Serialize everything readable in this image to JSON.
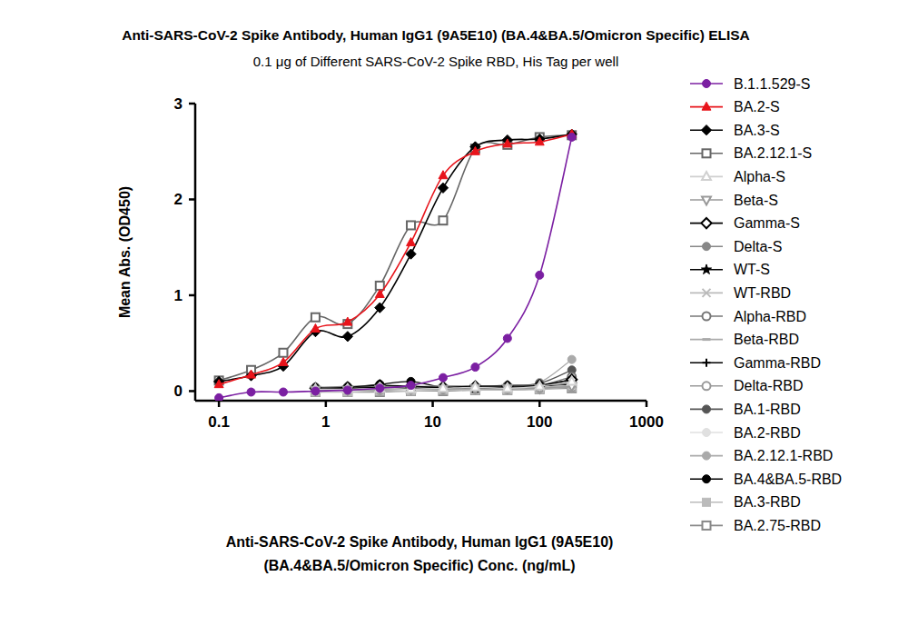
{
  "chart_data": {
    "type": "line",
    "title": "Anti-SARS-CoV-2 Spike Antibody, Human IgG1 (9A5E10) (BA.4&BA.5/Omicron Specific) ELISA",
    "subtitle": "0.1 μg of Different SARS-CoV-2 Spike RBD, His Tag  per well",
    "xlabel": "Anti-SARS-CoV-2 Spike Antibody, Human IgG1 (9A5E10)\n(BA.4&BA.5/Omicron Specific) Conc. (ng/mL)",
    "ylabel": "Mean Abs. (OD450)",
    "log": "x",
    "grid": false,
    "legend": "right",
    "xlim": [
      0.06,
      1000
    ],
    "xticks": [
      0.1,
      1,
      10,
      100,
      1000
    ],
    "ylim": [
      -0.1,
      3
    ],
    "yticks": [
      0,
      1,
      2,
      3
    ],
    "x": [
      0.1,
      0.2,
      0.4,
      0.8,
      1.6,
      3.2,
      6.25,
      12.5,
      25,
      50,
      100,
      200
    ],
    "series": [
      {
        "name": "B.1.1.529-S",
        "color": "#7b1fa2",
        "marker": "circle",
        "values": [
          -0.07,
          -0.01,
          -0.01,
          0.0,
          0.01,
          0.03,
          0.06,
          0.14,
          0.25,
          0.55,
          1.21,
          2.65
        ]
      },
      {
        "name": "BA.2-S",
        "color": "#e8141b",
        "marker": "triangle",
        "values": [
          0.07,
          0.17,
          0.3,
          0.65,
          0.72,
          1.01,
          1.55,
          2.25,
          2.5,
          2.58,
          2.6,
          2.68
        ]
      },
      {
        "name": "BA.3-S",
        "color": "#000000",
        "marker": "diamond",
        "values": [
          0.1,
          0.16,
          0.26,
          0.62,
          0.57,
          0.87,
          1.43,
          2.12,
          2.55,
          2.62,
          2.63,
          2.68
        ]
      },
      {
        "name": "BA.2.12.1-S",
        "color": "#666666",
        "marker": "open-square",
        "values": [
          0.11,
          0.22,
          0.4,
          0.77,
          0.7,
          1.1,
          1.73,
          1.78,
          2.53,
          2.57,
          2.65,
          2.67
        ]
      },
      {
        "name": "Alpha-S",
        "color": "#d0d0d0",
        "marker": "open-triangle",
        "values": [
          null,
          null,
          null,
          0.02,
          0.02,
          0.03,
          0.02,
          0.03,
          0.04,
          0.03,
          0.05,
          0.1
        ]
      },
      {
        "name": "Beta-S",
        "color": "#999999",
        "marker": "open-triangle-down",
        "values": [
          null,
          null,
          null,
          0.01,
          0.01,
          0.02,
          0.02,
          0.02,
          0.03,
          0.03,
          0.03,
          0.05
        ]
      },
      {
        "name": "Gamma-S",
        "color": "#000000",
        "marker": "open-diamond",
        "values": [
          null,
          null,
          null,
          0.03,
          0.04,
          0.06,
          0.05,
          0.04,
          0.05,
          0.05,
          0.06,
          0.12
        ]
      },
      {
        "name": "Delta-S",
        "color": "#888888",
        "marker": "circle",
        "values": [
          null,
          null,
          null,
          0.03,
          0.05,
          0.05,
          0.04,
          0.05,
          0.04,
          0.05,
          0.06,
          0.08
        ]
      },
      {
        "name": "WT-S",
        "color": "#000000",
        "marker": "star",
        "values": [
          null,
          null,
          null,
          0.02,
          0.03,
          0.04,
          0.03,
          0.04,
          0.03,
          0.04,
          0.05,
          0.1
        ]
      },
      {
        "name": "WT-RBD",
        "color": "#bbbbbb",
        "marker": "cross",
        "values": [
          null,
          null,
          null,
          0.02,
          0.02,
          0.02,
          0.03,
          0.02,
          0.03,
          0.03,
          0.04,
          0.06
        ]
      },
      {
        "name": "Alpha-RBD",
        "color": "#777777",
        "marker": "open-circle",
        "values": [
          null,
          null,
          null,
          0.03,
          0.03,
          0.04,
          0.03,
          0.04,
          0.04,
          0.05,
          0.06,
          0.15
        ]
      },
      {
        "name": "Beta-RBD",
        "color": "#aaaaaa",
        "marker": "dash",
        "values": [
          null,
          null,
          null,
          0.01,
          0.01,
          0.02,
          0.02,
          0.02,
          0.02,
          0.03,
          0.03,
          0.05
        ]
      },
      {
        "name": "Gamma-RBD",
        "color": "#000000",
        "marker": "plus",
        "values": [
          null,
          null,
          null,
          0.02,
          0.02,
          0.03,
          0.03,
          0.03,
          0.03,
          0.04,
          0.05,
          0.07
        ]
      },
      {
        "name": "Delta-RBD",
        "color": "#999999",
        "marker": "open-circle",
        "values": [
          null,
          null,
          null,
          0.01,
          0.01,
          0.01,
          0.02,
          0.02,
          0.02,
          0.02,
          0.03,
          0.04
        ]
      },
      {
        "name": "BA.1-RBD",
        "color": "#555555",
        "marker": "circle",
        "values": [
          null,
          null,
          null,
          0.03,
          0.03,
          0.05,
          0.04,
          0.05,
          0.05,
          0.06,
          0.08,
          0.22
        ]
      },
      {
        "name": "BA.2-RBD",
        "color": "#e0e0e0",
        "marker": "circle",
        "values": [
          null,
          null,
          null,
          0.01,
          0.02,
          0.02,
          0.02,
          0.02,
          0.03,
          0.03,
          0.03,
          0.05
        ]
      },
      {
        "name": "BA.2.12.1-RBD",
        "color": "#aaaaaa",
        "marker": "circle",
        "values": [
          null,
          null,
          null,
          0.03,
          0.04,
          0.05,
          0.05,
          0.05,
          0.05,
          0.06,
          0.09,
          0.33
        ]
      },
      {
        "name": "BA.4&BA.5-RBD",
        "color": "#000000",
        "marker": "circle",
        "values": [
          null,
          null,
          null,
          0.04,
          0.04,
          0.07,
          0.1,
          0.04,
          0.04,
          0.05,
          0.06,
          0.12
        ]
      },
      {
        "name": "BA.3-RBD",
        "color": "#bbbbbb",
        "marker": "square",
        "values": [
          null,
          null,
          null,
          -0.01,
          -0.01,
          0.0,
          0.0,
          0.01,
          0.01,
          0.01,
          0.02,
          0.04
        ]
      },
      {
        "name": "BA.2.75-RBD",
        "color": "#888888",
        "marker": "open-square",
        "values": [
          null,
          null,
          null,
          -0.01,
          -0.01,
          -0.01,
          0.0,
          0.0,
          0.01,
          0.01,
          0.02,
          0.03
        ]
      }
    ]
  }
}
